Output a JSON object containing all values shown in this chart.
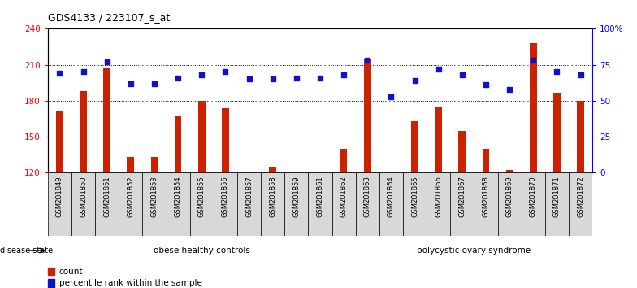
{
  "title": "GDS4133 / 223107_s_at",
  "samples": [
    "GSM201849",
    "GSM201850",
    "GSM201851",
    "GSM201852",
    "GSM201853",
    "GSM201854",
    "GSM201855",
    "GSM201856",
    "GSM201857",
    "GSM201858",
    "GSM201859",
    "GSM201861",
    "GSM201862",
    "GSM201863",
    "GSM201864",
    "GSM201865",
    "GSM201866",
    "GSM201867",
    "GSM201868",
    "GSM201869",
    "GSM201870",
    "GSM201871",
    "GSM201872"
  ],
  "counts": [
    172,
    188,
    208,
    133,
    133,
    168,
    180,
    174,
    120,
    125,
    120,
    120,
    140,
    215,
    121,
    163,
    175,
    155,
    140,
    122,
    228,
    187,
    180
  ],
  "percentiles": [
    69,
    70,
    77,
    62,
    62,
    66,
    68,
    70,
    65,
    65,
    66,
    66,
    68,
    78,
    53,
    64,
    72,
    68,
    61,
    58,
    78,
    70,
    68
  ],
  "group1_label": "obese healthy controls",
  "group2_label": "polycystic ovary syndrome",
  "group1_count": 13,
  "group2_count": 10,
  "ylim_left": [
    120,
    240
  ],
  "ylim_right": [
    0,
    100
  ],
  "yticks_left": [
    120,
    150,
    180,
    210,
    240
  ],
  "yticks_right": [
    0,
    25,
    50,
    75,
    100
  ],
  "bar_color": "#cc2200",
  "dot_color": "#1111cc",
  "tick_label_bg": "#d8d8d8",
  "group1_bg": "#ccffcc",
  "group2_bg": "#44cc44",
  "title_fontsize": 9,
  "disease_state_label": "disease state"
}
